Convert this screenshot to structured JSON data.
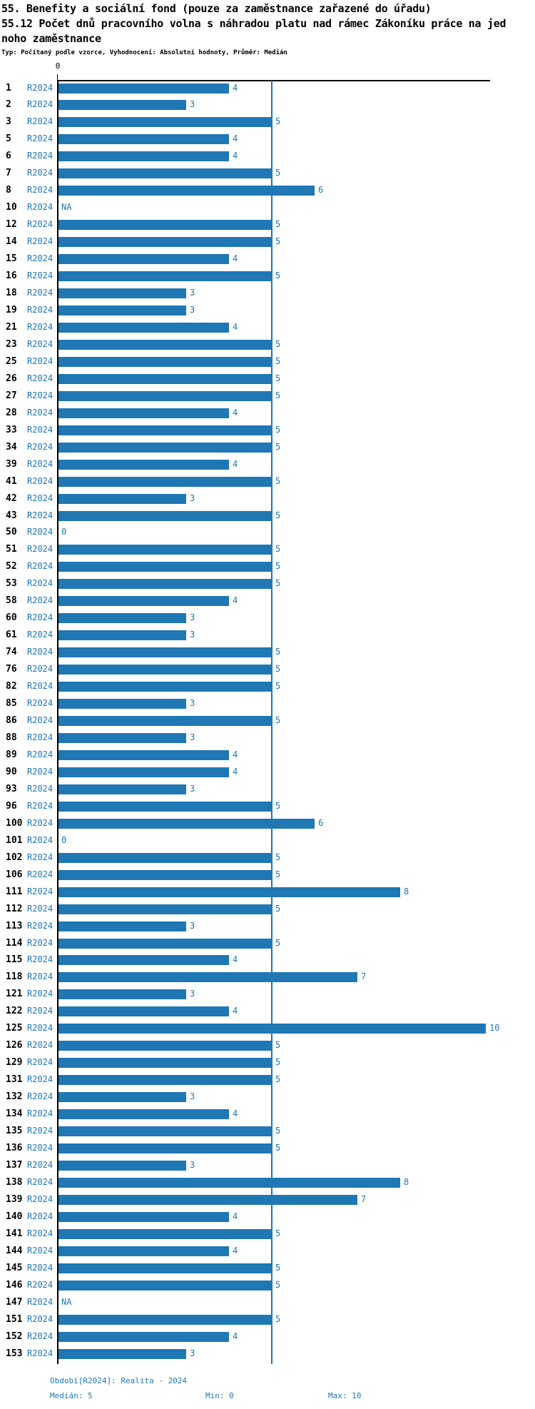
{
  "header": {
    "title": "55. Benefity a sociální fond (pouze za zaměstnance zařazené do úřadu)",
    "subtitle_line1": "55.12 Počet dnů pracovního volna s náhradou platu nad rámec Zákoníku práce na jed",
    "subtitle_line2": "noho zaměstnance",
    "meta": "Typ: Počítaný podle vzorce, Vyhodnocení: Absolutní hodnoty, Průměr: Medián"
  },
  "axis": {
    "origin_label": "0"
  },
  "footer": {
    "period": "Období[R2024]: Realita - 2024",
    "median": "Medián: 5",
    "min": "Min: 0",
    "max": "Max: 10"
  },
  "colors": {
    "bar": "#1F77B4",
    "median_line": "#1F77B4",
    "axis": "#000000",
    "label_blue": "#1F77B4"
  },
  "chart_data": {
    "type": "bar",
    "orientation": "horizontal",
    "title": "55.12 Počet dnů pracovního volna s náhradou platu nad rámec Zákoníku práce na jednoho zaměstnance",
    "series_label": "R2024",
    "xlim": [
      0,
      10
    ],
    "reference_line_x": 5,
    "grid": false,
    "legend_position": "none",
    "stats": {
      "median": 5,
      "min": 0,
      "max": 10
    },
    "categories": [
      "1",
      "2",
      "3",
      "5",
      "6",
      "7",
      "8",
      "10",
      "12",
      "14",
      "15",
      "16",
      "18",
      "19",
      "21",
      "23",
      "25",
      "26",
      "27",
      "28",
      "33",
      "34",
      "39",
      "41",
      "42",
      "43",
      "50",
      "51",
      "52",
      "53",
      "58",
      "60",
      "61",
      "74",
      "76",
      "82",
      "85",
      "86",
      "88",
      "89",
      "90",
      "93",
      "96",
      "100",
      "101",
      "102",
      "106",
      "111",
      "112",
      "113",
      "114",
      "115",
      "118",
      "121",
      "122",
      "125",
      "126",
      "129",
      "131",
      "132",
      "134",
      "135",
      "136",
      "137",
      "138",
      "139",
      "140",
      "141",
      "144",
      "145",
      "146",
      "147",
      "151",
      "152",
      "153"
    ],
    "values": [
      4,
      3,
      5,
      4,
      4,
      5,
      6,
      "NA",
      5,
      5,
      4,
      5,
      3,
      3,
      4,
      5,
      5,
      5,
      5,
      4,
      5,
      5,
      4,
      5,
      3,
      5,
      0,
      5,
      5,
      5,
      4,
      3,
      3,
      5,
      5,
      5,
      3,
      5,
      3,
      4,
      4,
      3,
      5,
      6,
      0,
      5,
      5,
      8,
      5,
      3,
      5,
      4,
      7,
      3,
      4,
      10,
      5,
      5,
      5,
      3,
      4,
      5,
      5,
      3,
      8,
      7,
      4,
      5,
      4,
      5,
      5,
      "NA",
      5,
      4,
      3
    ]
  }
}
